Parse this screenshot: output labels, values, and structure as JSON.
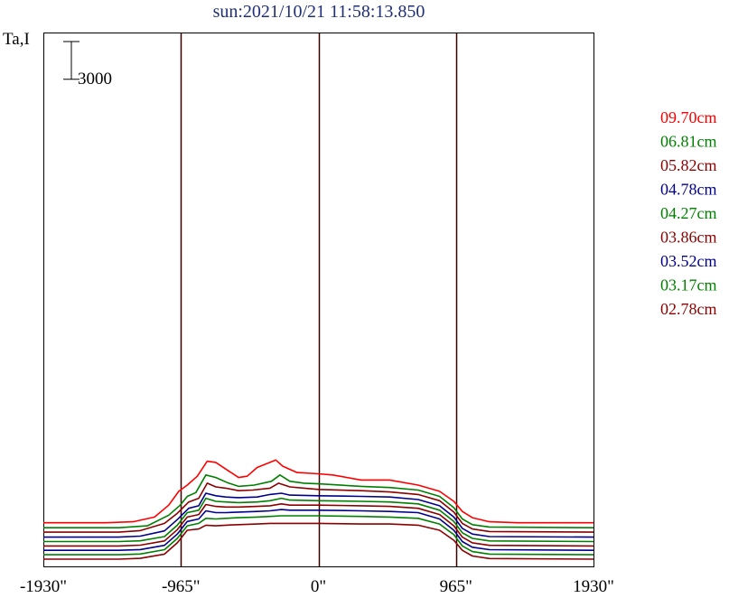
{
  "chart_data": {
    "type": "line",
    "title": "sun:2021/10/21 11:58:13.850",
    "title_color": "#1f2f7a",
    "ylabel": "Ta,I",
    "scale_bar_label": "3000",
    "scale_bar_value": 3000,
    "x_tick_labels": [
      "-1930\"",
      "-965\"",
      "0\"",
      "965\"",
      "1930\""
    ],
    "x_tick_values": [
      -1930,
      -965,
      0,
      965,
      1930
    ],
    "xlim": [
      -1930,
      1930
    ],
    "limb_lines": [
      -965,
      0,
      965
    ],
    "grid": false,
    "legend_position": "right",
    "series": [
      {
        "name": "09.70cm",
        "color": "#ff0000",
        "base": 2650,
        "shape": [
          [
            -1930,
            0
          ],
          [
            -1500,
            0
          ],
          [
            -1300,
            80
          ],
          [
            -1150,
            450
          ],
          [
            -1050,
            1400
          ],
          [
            -980,
            2500
          ],
          [
            -920,
            3000
          ],
          [
            -850,
            3700
          ],
          [
            -780,
            4900
          ],
          [
            -720,
            4800
          ],
          [
            -640,
            4200
          ],
          [
            -560,
            3600
          ],
          [
            -500,
            3700
          ],
          [
            -430,
            4400
          ],
          [
            -300,
            5000
          ],
          [
            -250,
            4500
          ],
          [
            -150,
            4000
          ],
          [
            0,
            3900
          ],
          [
            100,
            3800
          ],
          [
            300,
            3400
          ],
          [
            500,
            3400
          ],
          [
            700,
            3000
          ],
          [
            850,
            2500
          ],
          [
            950,
            1700
          ],
          [
            1010,
            900
          ],
          [
            1080,
            400
          ],
          [
            1200,
            80
          ],
          [
            1400,
            0
          ],
          [
            1930,
            0
          ]
        ]
      },
      {
        "name": "06.81cm",
        "color": "#008000",
        "base": 2250,
        "shape": [
          [
            -1930,
            0
          ],
          [
            -1400,
            0
          ],
          [
            -1200,
            150
          ],
          [
            -1050,
            1000
          ],
          [
            -970,
            1800
          ],
          [
            -920,
            2500
          ],
          [
            -860,
            2800
          ],
          [
            -790,
            4200
          ],
          [
            -720,
            4000
          ],
          [
            -640,
            3600
          ],
          [
            -560,
            3300
          ],
          [
            -450,
            3400
          ],
          [
            -330,
            3700
          ],
          [
            -270,
            4200
          ],
          [
            -200,
            3700
          ],
          [
            -100,
            3550
          ],
          [
            0,
            3500
          ],
          [
            300,
            3300
          ],
          [
            500,
            3200
          ],
          [
            700,
            3000
          ],
          [
            850,
            2500
          ],
          [
            950,
            1600
          ],
          [
            1010,
            700
          ],
          [
            1080,
            250
          ],
          [
            1200,
            60
          ],
          [
            1930,
            0
          ]
        ]
      },
      {
        "name": "05.82cm",
        "color": "#8b0000",
        "base": 1900,
        "shape": [
          [
            -1930,
            0
          ],
          [
            -1400,
            0
          ],
          [
            -1250,
            120
          ],
          [
            -1080,
            700
          ],
          [
            -990,
            1500
          ],
          [
            -910,
            2400
          ],
          [
            -840,
            2700
          ],
          [
            -780,
            3900
          ],
          [
            -720,
            3600
          ],
          [
            -650,
            3500
          ],
          [
            -560,
            3300
          ],
          [
            -460,
            3350
          ],
          [
            -340,
            3500
          ],
          [
            -280,
            3900
          ],
          [
            -200,
            3600
          ],
          [
            -100,
            3500
          ],
          [
            0,
            3400
          ],
          [
            300,
            3300
          ],
          [
            500,
            3200
          ],
          [
            700,
            3000
          ],
          [
            850,
            2500
          ],
          [
            950,
            1600
          ],
          [
            1010,
            700
          ],
          [
            1080,
            250
          ],
          [
            1200,
            50
          ],
          [
            1930,
            0
          ]
        ]
      },
      {
        "name": "04.78cm",
        "color": "#00008b",
        "base": 1500,
        "shape": [
          [
            -1930,
            0
          ],
          [
            -1400,
            0
          ],
          [
            -1250,
            80
          ],
          [
            -1080,
            500
          ],
          [
            -990,
            1400
          ],
          [
            -910,
            2300
          ],
          [
            -840,
            2500
          ],
          [
            -790,
            3500
          ],
          [
            -720,
            3300
          ],
          [
            -650,
            3200
          ],
          [
            -560,
            3150
          ],
          [
            -430,
            3200
          ],
          [
            -340,
            3400
          ],
          [
            -260,
            3500
          ],
          [
            -200,
            3350
          ],
          [
            0,
            3300
          ],
          [
            300,
            3250
          ],
          [
            500,
            3200
          ],
          [
            700,
            3000
          ],
          [
            850,
            2500
          ],
          [
            950,
            1600
          ],
          [
            1010,
            700
          ],
          [
            1080,
            250
          ],
          [
            1200,
            50
          ],
          [
            1930,
            0
          ]
        ]
      },
      {
        "name": "04.27cm",
        "color": "#008000",
        "base": 1150,
        "shape": [
          [
            -1930,
            0
          ],
          [
            -1400,
            0
          ],
          [
            -1250,
            60
          ],
          [
            -1080,
            400
          ],
          [
            -990,
            1300
          ],
          [
            -920,
            2300
          ],
          [
            -840,
            2500
          ],
          [
            -790,
            3450
          ],
          [
            -720,
            3200
          ],
          [
            -650,
            3150
          ],
          [
            -560,
            3100
          ],
          [
            -430,
            3150
          ],
          [
            -340,
            3250
          ],
          [
            -260,
            3450
          ],
          [
            -200,
            3300
          ],
          [
            0,
            3250
          ],
          [
            300,
            3200
          ],
          [
            500,
            3150
          ],
          [
            700,
            3000
          ],
          [
            850,
            2500
          ],
          [
            950,
            1600
          ],
          [
            1010,
            700
          ],
          [
            1080,
            250
          ],
          [
            1200,
            50
          ],
          [
            1930,
            0
          ]
        ]
      },
      {
        "name": "03.86cm",
        "color": "#8b0000",
        "base": 800,
        "shape": [
          [
            -1930,
            0
          ],
          [
            -1400,
            0
          ],
          [
            -1250,
            60
          ],
          [
            -1080,
            400
          ],
          [
            -990,
            1300
          ],
          [
            -920,
            2300
          ],
          [
            -840,
            2500
          ],
          [
            -790,
            3300
          ],
          [
            -720,
            3150
          ],
          [
            -650,
            3100
          ],
          [
            -560,
            3100
          ],
          [
            -430,
            3150
          ],
          [
            -340,
            3200
          ],
          [
            -260,
            3350
          ],
          [
            -200,
            3250
          ],
          [
            0,
            3250
          ],
          [
            300,
            3200
          ],
          [
            500,
            3150
          ],
          [
            700,
            3000
          ],
          [
            850,
            2500
          ],
          [
            950,
            1600
          ],
          [
            1010,
            700
          ],
          [
            1080,
            250
          ],
          [
            1200,
            50
          ],
          [
            1930,
            0
          ]
        ]
      },
      {
        "name": "03.52cm",
        "color": "#00008b",
        "base": 450,
        "shape": [
          [
            -1930,
            0
          ],
          [
            -1400,
            0
          ],
          [
            -1250,
            60
          ],
          [
            -1080,
            400
          ],
          [
            -990,
            1300
          ],
          [
            -920,
            2300
          ],
          [
            -840,
            2500
          ],
          [
            -790,
            3150
          ],
          [
            -720,
            3000
          ],
          [
            -650,
            3000
          ],
          [
            -560,
            3050
          ],
          [
            -430,
            3100
          ],
          [
            -340,
            3150
          ],
          [
            -260,
            3250
          ],
          [
            -200,
            3200
          ],
          [
            0,
            3200
          ],
          [
            300,
            3150
          ],
          [
            500,
            3100
          ],
          [
            700,
            3000
          ],
          [
            850,
            2500
          ],
          [
            950,
            1600
          ],
          [
            1010,
            700
          ],
          [
            1080,
            250
          ],
          [
            1200,
            50
          ],
          [
            1930,
            0
          ]
        ]
      },
      {
        "name": "03.17cm",
        "color": "#008000",
        "base": 100,
        "shape": [
          [
            -1930,
            0
          ],
          [
            -1400,
            0
          ],
          [
            -1250,
            60
          ],
          [
            -1080,
            400
          ],
          [
            -990,
            1300
          ],
          [
            -920,
            2300
          ],
          [
            -840,
            2500
          ],
          [
            -790,
            2900
          ],
          [
            -720,
            2850
          ],
          [
            -650,
            2900
          ],
          [
            -560,
            2950
          ],
          [
            -430,
            3000
          ],
          [
            -340,
            3050
          ],
          [
            -260,
            3100
          ],
          [
            -200,
            3100
          ],
          [
            0,
            3100
          ],
          [
            300,
            3050
          ],
          [
            500,
            3000
          ],
          [
            700,
            2900
          ],
          [
            850,
            2450
          ],
          [
            950,
            1600
          ],
          [
            1010,
            700
          ],
          [
            1080,
            250
          ],
          [
            1200,
            50
          ],
          [
            1930,
            0
          ]
        ]
      },
      {
        "name": "02.78cm",
        "color": "#8b0000",
        "base": -250,
        "shape": [
          [
            -1930,
            0
          ],
          [
            -1400,
            0
          ],
          [
            -1250,
            60
          ],
          [
            -1080,
            400
          ],
          [
            -990,
            1300
          ],
          [
            -920,
            2300
          ],
          [
            -840,
            2400
          ],
          [
            -790,
            2700
          ],
          [
            -720,
            2650
          ],
          [
            -650,
            2700
          ],
          [
            -560,
            2750
          ],
          [
            -430,
            2800
          ],
          [
            -340,
            2850
          ],
          [
            -260,
            2850
          ],
          [
            0,
            2850
          ],
          [
            300,
            2800
          ],
          [
            500,
            2800
          ],
          [
            700,
            2700
          ],
          [
            850,
            2300
          ],
          [
            950,
            1500
          ],
          [
            1010,
            700
          ],
          [
            1080,
            250
          ],
          [
            1200,
            50
          ],
          [
            1930,
            0
          ]
        ]
      }
    ]
  }
}
